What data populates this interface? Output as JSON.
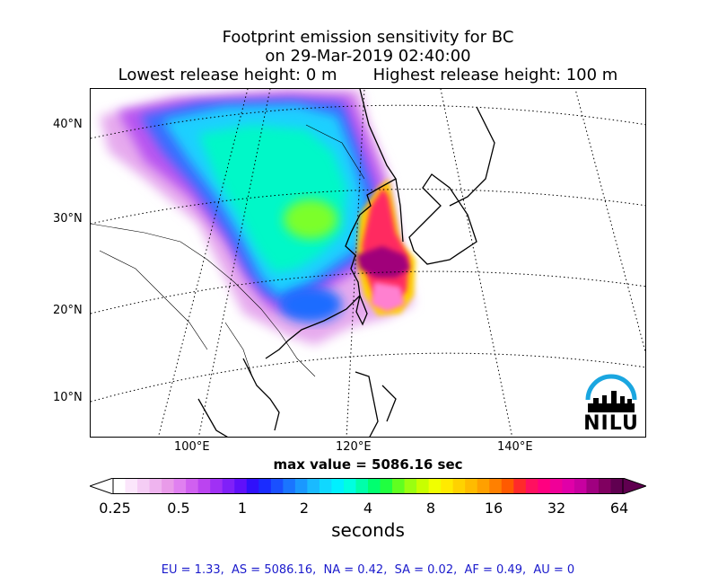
{
  "title": {
    "line1": "Footprint emission sensitivity for BC",
    "line2": "on 29-Mar-2019 02:40:00",
    "lowest_release": "Lowest release height: 0 m",
    "highest_release": "Highest release height: 100 m"
  },
  "map": {
    "lat_labels": [
      "40°N",
      "30°N",
      "20°N",
      "10°N"
    ],
    "lon_labels": [
      "100°E",
      "120°E",
      "140°E"
    ]
  },
  "max_value": "max value = 5086.16 sec",
  "colorbar": {
    "ticks": [
      "0.25",
      "0.5",
      "1",
      "2",
      "4",
      "8",
      "16",
      "32",
      "64"
    ],
    "label": "seconds",
    "colors": [
      "#ffffff",
      "#fbe6fb",
      "#f5cdf5",
      "#efb4ef",
      "#e99be9",
      "#e080f0",
      "#d060f0",
      "#bb44f0",
      "#a030f5",
      "#8020f8",
      "#6010fa",
      "#3010fb",
      "#1a2cff",
      "#1a50ff",
      "#1a75ff",
      "#1a98ff",
      "#1abaff",
      "#10d8ff",
      "#00f0ff",
      "#00ffe0",
      "#00ffaa",
      "#00ff70",
      "#20ff40",
      "#60ff20",
      "#9aff10",
      "#c8ff00",
      "#f0ff00",
      "#ffea00",
      "#ffd200",
      "#ffbb00",
      "#ffa000",
      "#ff8000",
      "#ff5a00",
      "#ff2a2a",
      "#ff1060",
      "#ff0080",
      "#f00098",
      "#e000a8",
      "#c800a0",
      "#a00080",
      "#800060",
      "#600050"
    ]
  },
  "logo_text": "NILU",
  "footer": "EU = 1.33,  AS = 5086.16,  NA = 0.42,  SA = 0.02,  AF = 0.49,  AU = 0"
}
